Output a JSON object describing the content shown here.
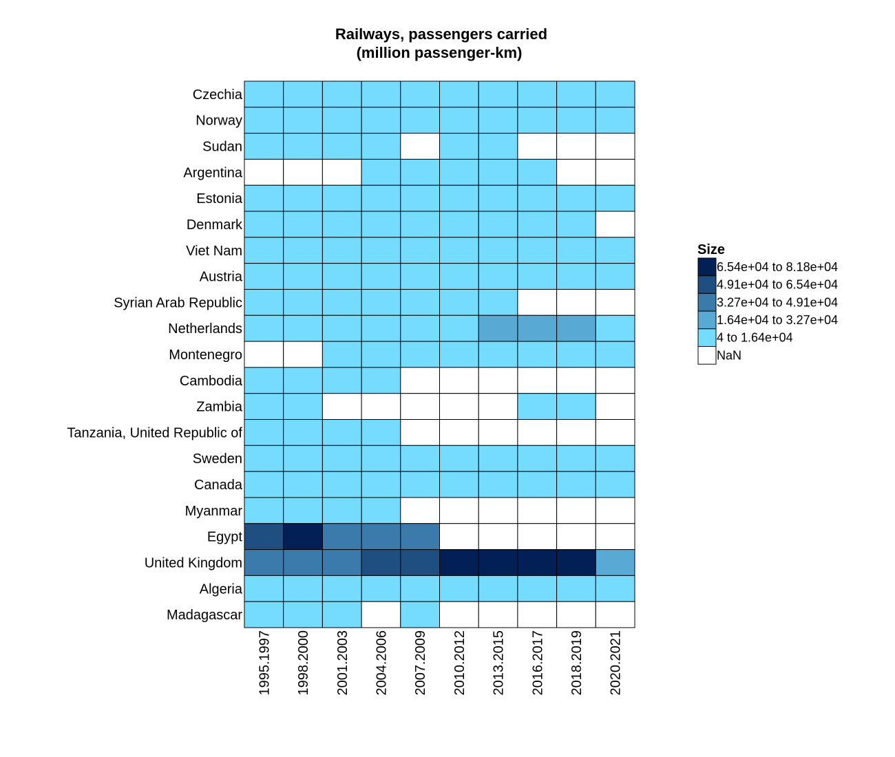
{
  "chart_data": {
    "type": "heatmap",
    "title": [
      "Railways, passengers carried",
      "(million passenger-km)"
    ],
    "columns": [
      "1995.1997",
      "1998.2000",
      "2001.2003",
      "2004.2006",
      "2007.2009",
      "2010.2012",
      "2013.2015",
      "2016.2017",
      "2018.2019",
      "2020.2021"
    ],
    "rows": [
      "Czechia",
      "Norway",
      "Sudan",
      "Argentina",
      "Estonia",
      "Denmark",
      "Viet Nam",
      "Austria",
      "Syrian Arab Republic",
      "Netherlands",
      "Montenegro",
      "Cambodia",
      "Zambia",
      "Tanzania, United Republic of",
      "Sweden",
      "Canada",
      "Myanmar",
      "Egypt",
      "United Kingdom",
      "Algeria",
      "Madagascar"
    ],
    "legend": {
      "title": "Size",
      "bins": [
        {
          "label": "6.54e+04 to 8.18e+04",
          "color": "#021F56"
        },
        {
          "label": "4.91e+04 to 6.54e+04",
          "color": "#1F4E80"
        },
        {
          "label": "3.27e+04 to 4.91e+04",
          "color": "#3A7BAC"
        },
        {
          "label": "1.64e+04 to 3.27e+04",
          "color": "#58AAD5"
        },
        {
          "label": "4 to 1.64e+04",
          "color": "#75DBFF"
        },
        {
          "label": "NaN",
          "color": "#FFFFFF"
        }
      ]
    },
    "bin_matrix": [
      [
        4,
        4,
        4,
        4,
        4,
        4,
        4,
        4,
        4,
        4
      ],
      [
        4,
        4,
        4,
        4,
        4,
        4,
        4,
        4,
        4,
        4
      ],
      [
        4,
        4,
        4,
        4,
        5,
        4,
        4,
        5,
        5,
        5
      ],
      [
        5,
        5,
        5,
        4,
        4,
        4,
        4,
        4,
        5,
        5
      ],
      [
        4,
        4,
        4,
        4,
        4,
        4,
        4,
        4,
        4,
        4
      ],
      [
        4,
        4,
        4,
        4,
        4,
        4,
        4,
        4,
        4,
        5
      ],
      [
        4,
        4,
        4,
        4,
        4,
        4,
        4,
        4,
        4,
        4
      ],
      [
        4,
        4,
        4,
        4,
        4,
        4,
        4,
        4,
        4,
        4
      ],
      [
        4,
        4,
        4,
        4,
        4,
        4,
        4,
        5,
        5,
        5
      ],
      [
        4,
        4,
        4,
        4,
        4,
        4,
        3,
        3,
        3,
        4
      ],
      [
        5,
        5,
        4,
        4,
        4,
        4,
        4,
        4,
        4,
        4
      ],
      [
        4,
        4,
        4,
        4,
        5,
        5,
        5,
        5,
        5,
        5
      ],
      [
        4,
        4,
        5,
        5,
        5,
        5,
        5,
        4,
        4,
        5
      ],
      [
        4,
        4,
        4,
        4,
        5,
        5,
        5,
        5,
        5,
        5
      ],
      [
        4,
        4,
        4,
        4,
        4,
        4,
        4,
        4,
        4,
        4
      ],
      [
        4,
        4,
        4,
        4,
        4,
        4,
        4,
        4,
        4,
        4
      ],
      [
        4,
        4,
        4,
        4,
        5,
        5,
        5,
        5,
        5,
        5
      ],
      [
        1,
        0,
        2,
        2,
        2,
        5,
        5,
        5,
        5,
        5
      ],
      [
        2,
        2,
        2,
        1,
        1,
        0,
        0,
        0,
        0,
        3
      ],
      [
        4,
        4,
        4,
        4,
        4,
        4,
        4,
        4,
        4,
        4
      ],
      [
        4,
        4,
        4,
        5,
        4,
        5,
        5,
        5,
        5,
        5
      ]
    ]
  }
}
